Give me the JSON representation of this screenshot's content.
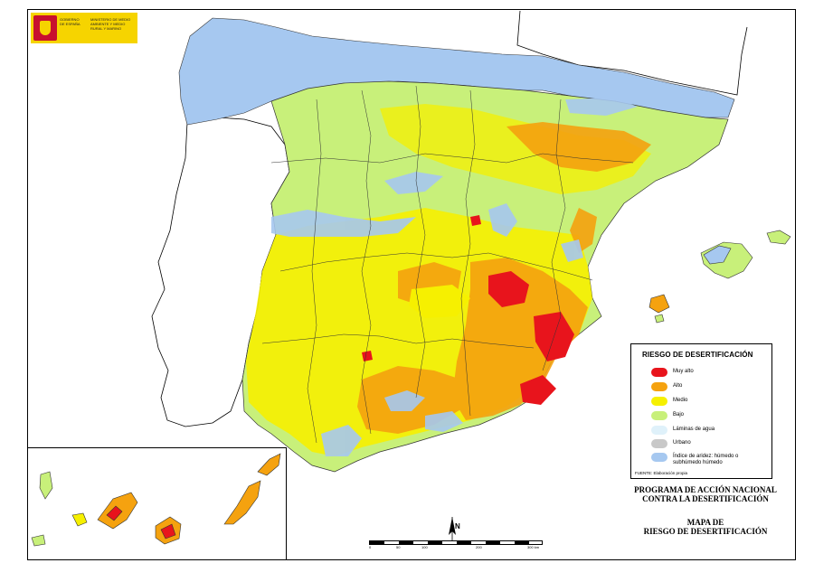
{
  "logo": {
    "government": "GOBIERNO DE ESPAÑA",
    "ministry": "MINISTERIO DE MEDIO AMBIENTE Y MEDIO RURAL Y MARINO"
  },
  "legend": {
    "title": "RIESGO DE DESERTIFICACIÓN",
    "items": [
      {
        "label": "Muy alto",
        "color": "#e8141c"
      },
      {
        "label": "Alto",
        "color": "#f5a20f"
      },
      {
        "label": "Medio",
        "color": "#f6f000"
      },
      {
        "label": "Bajo",
        "color": "#c8f07a"
      },
      {
        "label": "Láminas de agua",
        "color": "#dff1fa"
      },
      {
        "label": "Urbano",
        "color": "#c8c8c8"
      },
      {
        "label": "Índice de aridez: húmedo o subhúmedo húmedo",
        "color": "#a6c8f0"
      }
    ],
    "source": "FUENTE: Elaboración propia"
  },
  "programme": {
    "line1": "PROGRAMA DE ACCIÓN NACIONAL",
    "line2": "CONTRA LA DESERTIFICACIÓN"
  },
  "map_title": {
    "line1": "MAPA DE",
    "line2": "RIESGO DE DESERTIFICACIÓN"
  },
  "scale_bar": {
    "ticks": [
      "0",
      "50",
      "100",
      "200",
      "300 km"
    ]
  },
  "north_arrow": "N"
}
